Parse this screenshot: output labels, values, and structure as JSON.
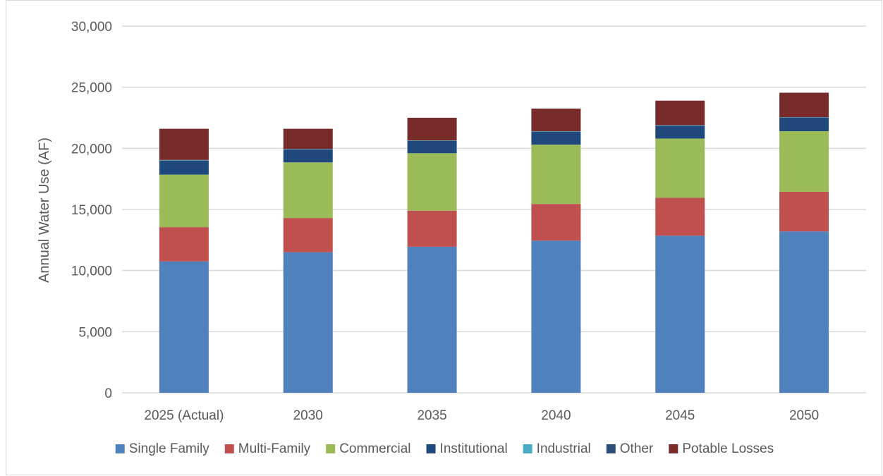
{
  "chart_data": {
    "type": "bar",
    "stacked": true,
    "title": "",
    "xlabel": "",
    "ylabel": "Annual Water Use (AF)",
    "ylim": [
      0,
      30000
    ],
    "yticks": [
      0,
      5000,
      10000,
      15000,
      20000,
      25000,
      30000
    ],
    "ytick_labels": [
      "0",
      "5,000",
      "10,000",
      "15,000",
      "20,000",
      "25,000",
      "30,000"
    ],
    "grid": true,
    "legend_position": "bottom",
    "categories": [
      "2025 (Actual)",
      "2030",
      "2035",
      "2040",
      "2045",
      "2050"
    ],
    "series": [
      {
        "name": "Single Family",
        "color": "#4f81bd",
        "values": [
          10750,
          11500,
          11950,
          12450,
          12850,
          13200
        ]
      },
      {
        "name": "Multi-Family",
        "color": "#c0504d",
        "values": [
          2800,
          2800,
          2950,
          3000,
          3100,
          3250
        ]
      },
      {
        "name": "Commercial",
        "color": "#9bbb59",
        "values": [
          4300,
          4550,
          4700,
          4850,
          4850,
          4950
        ]
      },
      {
        "name": "Institutional",
        "color": "#1f497d",
        "values": [
          1150,
          1050,
          1000,
          1050,
          1050,
          1100
        ]
      },
      {
        "name": "Industrial",
        "color": "#4bacc6",
        "values": [
          30,
          30,
          30,
          30,
          30,
          30
        ]
      },
      {
        "name": "Other",
        "color": "#2c4d75",
        "values": [
          20,
          20,
          20,
          20,
          20,
          20
        ]
      },
      {
        "name": "Potable Losses",
        "color": "#772c2a",
        "values": [
          2550,
          1650,
          1850,
          1850,
          2000,
          2000
        ]
      }
    ]
  }
}
